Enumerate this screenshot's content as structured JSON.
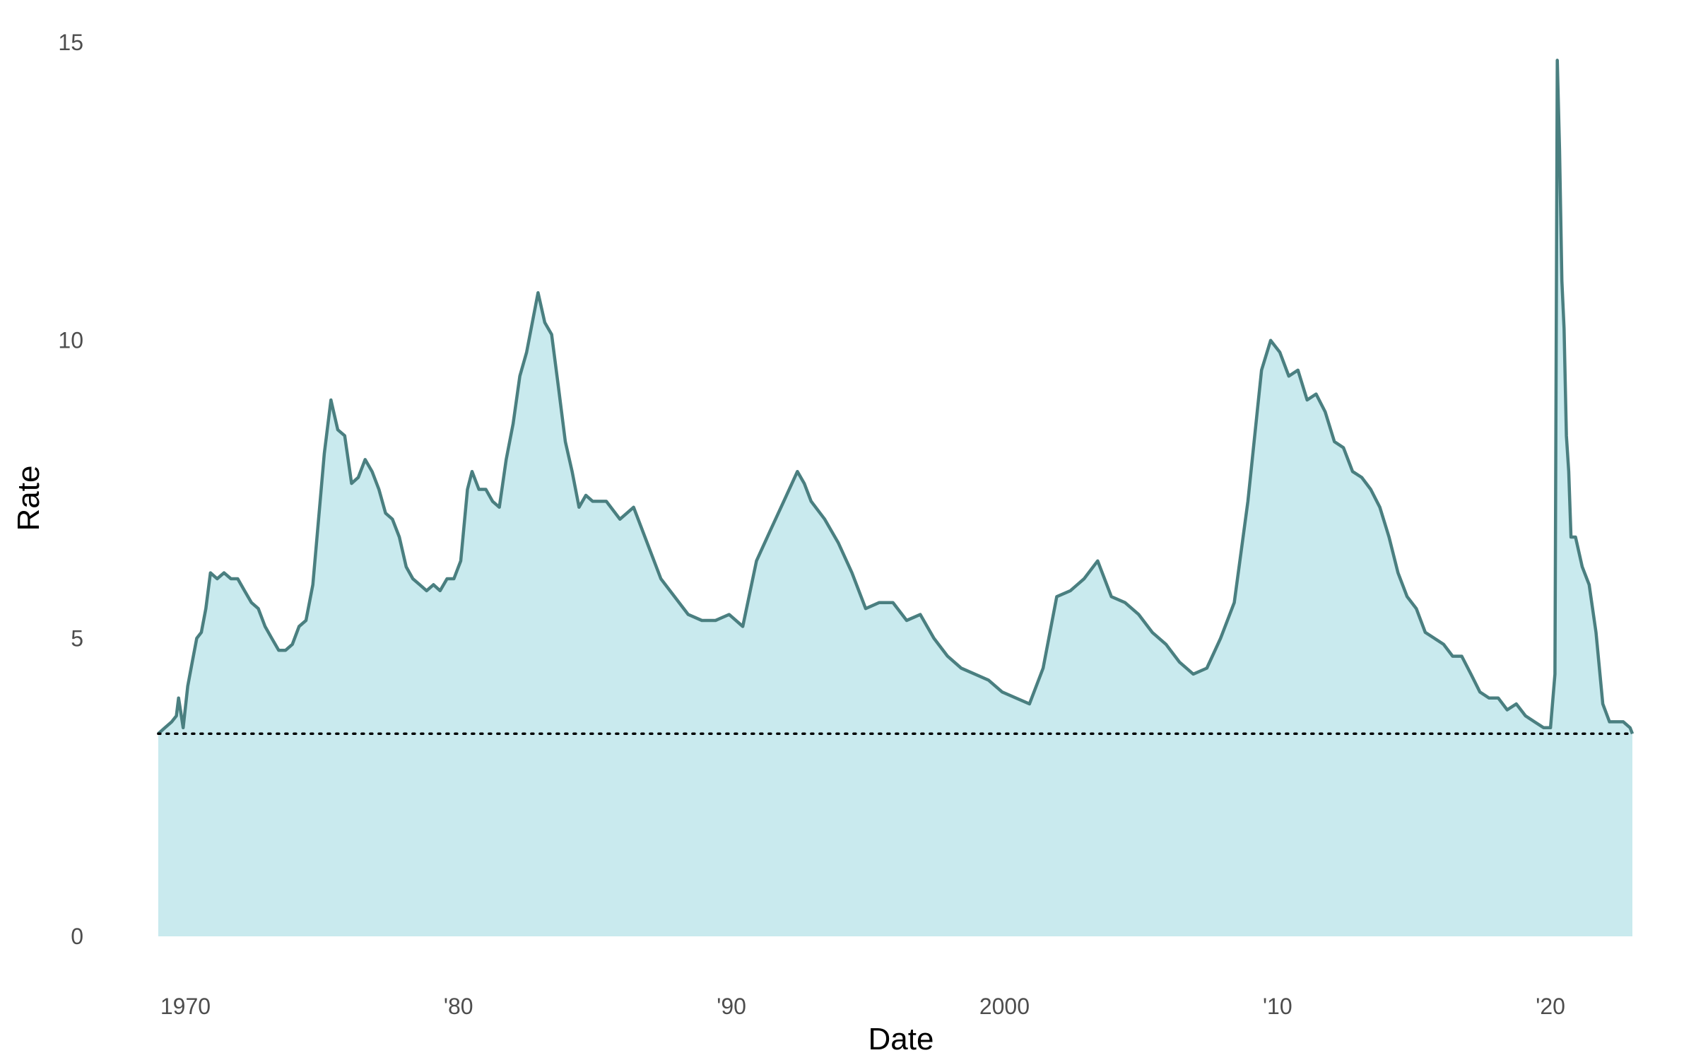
{
  "chart_data": {
    "type": "area",
    "xlabel": "Date",
    "ylabel": "Rate",
    "xlim": [
      "1969-01-01",
      "2023-01-01"
    ],
    "ylim": [
      0,
      15
    ],
    "y_ticks": [
      0,
      5,
      10,
      15
    ],
    "x_ticks": [
      {
        "date": "1970-01-01",
        "label": "1970"
      },
      {
        "date": "1980-01-01",
        "label": "'80"
      },
      {
        "date": "1990-01-01",
        "label": "'90"
      },
      {
        "date": "2000-01-01",
        "label": "2000"
      },
      {
        "date": "2010-01-01",
        "label": "'10"
      },
      {
        "date": "2020-01-01",
        "label": "'20"
      }
    ],
    "reference_line": {
      "y": 3.4,
      "style": "dotted"
    },
    "grid": false,
    "colors": {
      "line": "#4a7f80",
      "fill": "#c9eaee",
      "reference": "#000000"
    },
    "series": [
      {
        "x": [
          "1969-01-01",
          "1969-04-01",
          "1969-07-01",
          "1969-09-01",
          "1969-10-01",
          "1969-12-01",
          "1970-02-01",
          "1970-04-01",
          "1970-06-01",
          "1970-08-01",
          "1970-10-01",
          "1970-12-01",
          "1971-03-01",
          "1971-06-01",
          "1971-09-01",
          "1971-12-01",
          "1972-03-01",
          "1972-06-01",
          "1972-09-01",
          "1972-12-01",
          "1973-03-01",
          "1973-06-01",
          "1973-09-01",
          "1973-12-01",
          "1974-03-01",
          "1974-06-01",
          "1974-09-01",
          "1974-12-01",
          "1975-02-01",
          "1975-05-01",
          "1975-08-01",
          "1975-11-01",
          "1976-02-01",
          "1976-05-01",
          "1976-08-01",
          "1976-11-01",
          "1977-02-01",
          "1977-05-01",
          "1977-08-01",
          "1977-11-01",
          "1978-02-01",
          "1978-05-01",
          "1978-08-01",
          "1978-11-01",
          "1979-02-01",
          "1979-05-01",
          "1979-08-01",
          "1979-11-01",
          "1980-02-01",
          "1980-05-01",
          "1980-07-01",
          "1980-10-01",
          "1981-01-01",
          "1981-04-01",
          "1981-07-01",
          "1981-10-01",
          "1982-01-01",
          "1982-04-01",
          "1982-07-01",
          "1982-10-01",
          "1982-12-01",
          "1983-03-01",
          "1983-06-01",
          "1983-09-01",
          "1983-12-01",
          "1984-03-01",
          "1984-06-01",
          "1984-09-01",
          "1984-12-01",
          "1985-06-01",
          "1985-12-01",
          "1986-06-01",
          "1986-12-01",
          "1987-06-01",
          "1987-12-01",
          "1988-06-01",
          "1988-12-01",
          "1989-06-01",
          "1989-12-01",
          "1990-06-01",
          "1990-12-01",
          "1991-06-01",
          "1991-12-01",
          "1992-06-01",
          "1992-09-01",
          "1992-12-01",
          "1993-06-01",
          "1993-12-01",
          "1994-06-01",
          "1994-12-01",
          "1995-06-01",
          "1995-12-01",
          "1996-06-01",
          "1996-12-01",
          "1997-06-01",
          "1997-12-01",
          "1998-06-01",
          "1998-12-01",
          "1999-06-01",
          "1999-12-01",
          "2000-06-01",
          "2000-12-01",
          "2001-06-01",
          "2001-12-01",
          "2002-06-01",
          "2002-12-01",
          "2003-06-01",
          "2003-12-01",
          "2004-06-01",
          "2004-12-01",
          "2005-06-01",
          "2005-12-01",
          "2006-06-01",
          "2006-12-01",
          "2007-06-01",
          "2007-12-01",
          "2008-06-01",
          "2008-12-01",
          "2009-06-01",
          "2009-10-01",
          "2010-02-01",
          "2010-06-01",
          "2010-10-01",
          "2011-02-01",
          "2011-06-01",
          "2011-10-01",
          "2012-02-01",
          "2012-06-01",
          "2012-10-01",
          "2013-02-01",
          "2013-06-01",
          "2013-10-01",
          "2014-02-01",
          "2014-06-01",
          "2014-10-01",
          "2015-02-01",
          "2015-06-01",
          "2015-10-01",
          "2016-02-01",
          "2016-06-01",
          "2016-10-01",
          "2017-02-01",
          "2017-06-01",
          "2017-10-01",
          "2018-02-01",
          "2018-06-01",
          "2018-10-01",
          "2019-02-01",
          "2019-06-01",
          "2019-10-01",
          "2020-01-01",
          "2020-03-01",
          "2020-04-01",
          "2020-05-01",
          "2020-06-01",
          "2020-07-01",
          "2020-08-01",
          "2020-09-01",
          "2020-10-01",
          "2020-12-01",
          "2021-03-01",
          "2021-06-01",
          "2021-09-01",
          "2021-12-01",
          "2022-03-01",
          "2022-06-01",
          "2022-09-01",
          "2022-12-01",
          "2023-01-01"
        ],
        "y": [
          3.4,
          3.5,
          3.6,
          3.7,
          4.0,
          3.5,
          4.2,
          4.6,
          5.0,
          5.1,
          5.5,
          6.1,
          6.0,
          6.1,
          6.0,
          6.0,
          5.8,
          5.6,
          5.5,
          5.2,
          5.0,
          4.8,
          4.8,
          4.9,
          5.2,
          5.3,
          5.9,
          7.2,
          8.1,
          9.0,
          8.5,
          8.4,
          7.6,
          7.7,
          8.0,
          7.8,
          7.5,
          7.1,
          7.0,
          6.7,
          6.2,
          6.0,
          5.9,
          5.8,
          5.9,
          5.8,
          6.0,
          6.0,
          6.3,
          7.5,
          7.8,
          7.5,
          7.5,
          7.3,
          7.2,
          8.0,
          8.6,
          9.4,
          9.8,
          10.4,
          10.8,
          10.3,
          10.1,
          9.2,
          8.3,
          7.8,
          7.2,
          7.4,
          7.3,
          7.3,
          7.0,
          7.2,
          6.6,
          6.0,
          5.7,
          5.4,
          5.3,
          5.3,
          5.4,
          5.2,
          6.3,
          6.8,
          7.3,
          7.8,
          7.6,
          7.3,
          7.0,
          6.6,
          6.1,
          5.5,
          5.6,
          5.6,
          5.3,
          5.4,
          5.0,
          4.7,
          4.5,
          4.4,
          4.3,
          4.1,
          4.0,
          3.9,
          4.5,
          5.7,
          5.8,
          6.0,
          6.3,
          5.7,
          5.6,
          5.4,
          5.1,
          4.9,
          4.6,
          4.4,
          4.5,
          5.0,
          5.6,
          7.3,
          9.5,
          10.0,
          9.8,
          9.4,
          9.5,
          9.0,
          9.1,
          8.8,
          8.3,
          8.2,
          7.8,
          7.7,
          7.5,
          7.2,
          6.7,
          6.1,
          5.7,
          5.5,
          5.1,
          5.0,
          4.9,
          4.7,
          4.7,
          4.4,
          4.1,
          4.0,
          4.0,
          3.8,
          3.9,
          3.7,
          3.6,
          3.5,
          3.5,
          4.4,
          14.7,
          13.2,
          11.0,
          10.2,
          8.4,
          7.8,
          6.7,
          6.7,
          6.2,
          5.9,
          5.1,
          3.9,
          3.6,
          3.6,
          3.6,
          3.5,
          3.4
        ]
      }
    ]
  }
}
